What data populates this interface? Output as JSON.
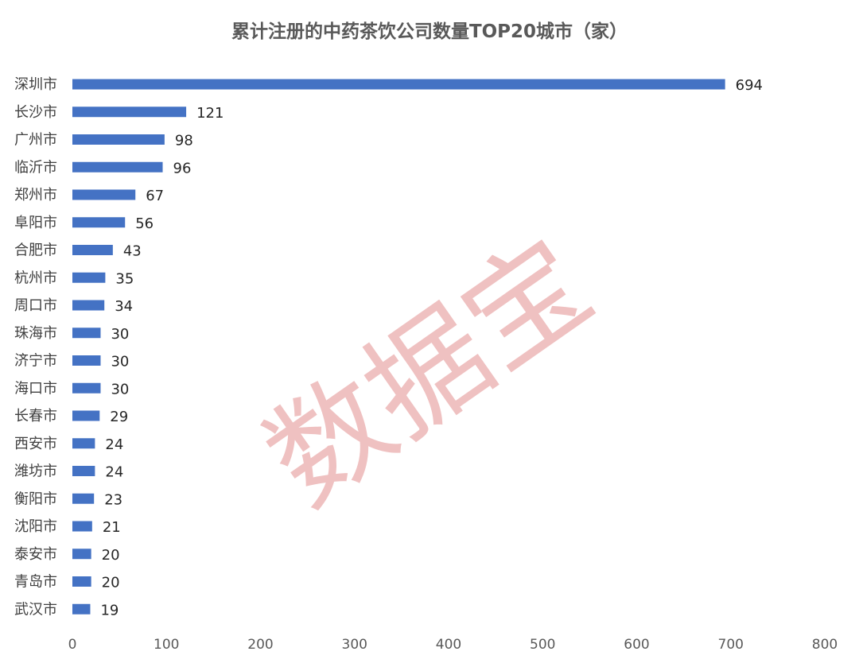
{
  "chart_data": {
    "type": "bar",
    "orientation": "horizontal",
    "title": "累计注册的中药茶饮公司数量TOP20城市（家）",
    "categories": [
      "深圳市",
      "长沙市",
      "广州市",
      "临沂市",
      "郑州市",
      "阜阳市",
      "合肥市",
      "杭州市",
      "周口市",
      "珠海市",
      "济宁市",
      "海口市",
      "长春市",
      "西安市",
      "潍坊市",
      "衡阳市",
      "沈阳市",
      "泰安市",
      "青岛市",
      "武汉市"
    ],
    "values": [
      694,
      121,
      98,
      96,
      67,
      56,
      43,
      35,
      34,
      30,
      30,
      30,
      29,
      24,
      24,
      23,
      21,
      20,
      20,
      19
    ],
    "xlim": [
      0,
      800
    ],
    "xticks": [
      0,
      100,
      200,
      300,
      400,
      500,
      600,
      700,
      800
    ],
    "grid": false,
    "legend": "none",
    "bar_color": "#4472C4",
    "data_labels": true
  },
  "watermark": {
    "text": "数据宝",
    "color": "#E8A0A0"
  }
}
